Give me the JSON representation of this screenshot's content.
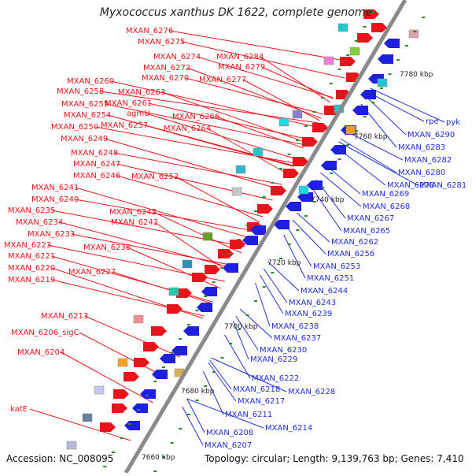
{
  "title": "Myxococcus xanthus DK 1622, complete genome",
  "accession_text": "Accession: NC_008095",
  "topology_text": "Topology: circular; Length: 9,139,763 bp; Genes: 7,410",
  "colors": {
    "label_left": "#e8141b",
    "label_right": "#1f2fd8",
    "forward_strand": "#e8141b",
    "reverse_strand": "#1f1fe0",
    "backbone": "#8a8a8a",
    "tick_dot": "#2a8a2a"
  },
  "scale_ticks": [
    "7660 kbp",
    "7680 kbp",
    "7700 kbp",
    "7720 kbp",
    "7740 kbp",
    "7760 kbp",
    "7780 kbp"
  ],
  "left_labels": [
    "MXAN_6276",
    "MXAN_6275",
    "MXAN_6274",
    "MXAN_6284",
    "MXAN_6272",
    "MXAN_6279",
    "MXAN_6270",
    "MXAN_6277",
    "MXAN_6260",
    "MXAN_6263",
    "MXAN_6258",
    "MXAN_6261",
    "MXAN_6255",
    "agmU",
    "MXAN_6254",
    "MXAN_6266",
    "MXAN_6250",
    "MXAN_6257",
    "MXAN_6264",
    "MXAN_6249",
    "MXAN_6248",
    "MXAN_6247",
    "MXAN_6246",
    "MXAN_6252",
    "MXAN_6241",
    "MXAN_6240",
    "MXAN_6235",
    "MXAN_6245",
    "MXAN_6234",
    "MXAN_6242",
    "MXAN_6233",
    "MXAN_6223",
    "MXAN_6236",
    "MXAN_6221",
    "MXAN_6220",
    "MXAN_6227",
    "MXAN_6219",
    "MXAN_6213",
    "MXAN_6206_sigC",
    "MXAN_6204",
    "katE"
  ],
  "right_labels": [
    "rpe",
    "pyk",
    "MXAN_6290",
    "MXAN_6283",
    "MXAN_6282",
    "MXAN_6280",
    "MXAN_6278",
    "MXAN_6281",
    "MXAN_6269",
    "MXAN_6268",
    "MXAN_6267",
    "MXAN_6265",
    "MXAN_6262",
    "MXAN_6256",
    "MXAN_6253",
    "MXAN_6251",
    "MXAN_6244",
    "MXAN_6243",
    "MXAN_6239",
    "MXAN_6238",
    "MXAN_6237",
    "MXAN_6230",
    "MXAN_6229",
    "MXAN_6222",
    "MXAN_6218",
    "MXAN_6228",
    "MXAN_6217",
    "MXAN_6211",
    "MXAN_6214",
    "MXAN_6208",
    "MXAN_6207"
  ]
}
